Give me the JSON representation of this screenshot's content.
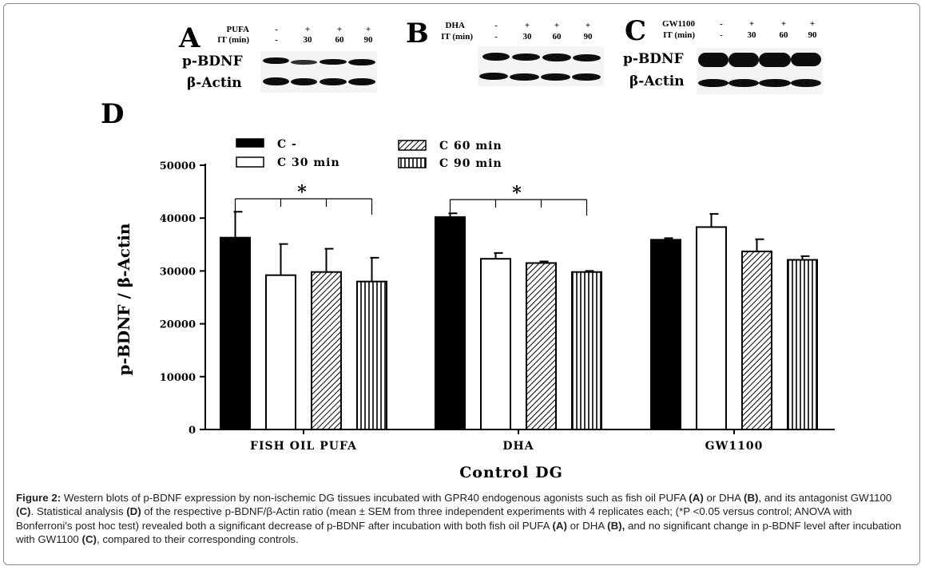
{
  "panels": [
    {
      "letter": "A",
      "row1_label": "PUFA",
      "row1": [
        "-",
        "+",
        "+",
        "+"
      ],
      "row2_label": "IT (min)",
      "row2": [
        "-",
        "30",
        "60",
        "90"
      ],
      "blots": [
        "p-BDNF",
        "β-Actin"
      ]
    },
    {
      "letter": "B",
      "row1_label": "DHA",
      "row1": [
        "-",
        "+",
        "+",
        "+"
      ],
      "row2_label": "IT (min)",
      "row2": [
        "-",
        "30",
        "60",
        "90"
      ],
      "blots": []
    },
    {
      "letter": "C",
      "row1_label": "GW1100",
      "row1": [
        "-",
        "+",
        "+",
        "+"
      ],
      "row2_label": "IT (min)",
      "row2": [
        "-",
        "30",
        "60",
        "90"
      ],
      "blots": [
        "p-BDNF",
        "β-Actin"
      ]
    }
  ],
  "chart_panel_letter": "D",
  "chart_data": {
    "type": "bar",
    "categories": [
      "FISH OIL PUFA",
      "DHA",
      "GW1100"
    ],
    "series": [
      {
        "name": "C -",
        "pattern": "solid",
        "values": [
          36300,
          40200,
          35900
        ],
        "errors": [
          4900,
          700,
          300
        ]
      },
      {
        "name": "C 30 min",
        "pattern": "open",
        "values": [
          29200,
          32300,
          38300
        ],
        "errors": [
          5900,
          1100,
          2500
        ]
      },
      {
        "name": "C 60 min",
        "pattern": "diagonal",
        "values": [
          29800,
          31500,
          33700
        ],
        "errors": [
          4400,
          300,
          2300
        ]
      },
      {
        "name": "C 90 min",
        "pattern": "vertical",
        "values": [
          28000,
          29800,
          32100
        ],
        "errors": [
          4500,
          200,
          700
        ]
      }
    ],
    "title": "",
    "xlabel": "Control DG",
    "ylabel": "p-BDNF / β-Actin",
    "ylim": [
      0,
      50000
    ],
    "yticks": [
      "0",
      "10000",
      "20000",
      "30000",
      "40000",
      "50000"
    ],
    "legend": [
      "C -",
      "C 30 min",
      "C 60 min",
      "C 90 min"
    ],
    "significance": [
      {
        "category": "FISH OIL PUFA",
        "marker": "*"
      },
      {
        "category": "DHA",
        "marker": "*"
      }
    ]
  },
  "caption": {
    "figure_label": "Figure 2:",
    "t1": " Western blots of p-BDNF expression by non-ischemic DG tissues incubated with GPR40 endogenous agonists such as fish oil PUFA ",
    "b1": "(A)",
    "t2": " or DHA ",
    "b2": "(B)",
    "t3": ", and its antagonist GW1100 ",
    "b3": "(C)",
    "t4": ". Statistical analysis ",
    "b4": "(D)",
    "t5": " of the respective p-BDNF/β-Actin ratio (mean ± SEM from three independent experiments with 4 replicates each; (*P <0.05 versus control; ANOVA with Bonferroni's post hoc test) revealed both a significant decrease of p-BDNF after incubation with both fish oil PUFA ",
    "b5": "(A)",
    "t6": " or DHA ",
    "b6": "(B),",
    "t7": " and no significant change in p-BDNF level after incubation with GW1100 ",
    "b7": "(C)",
    "t8": ", compared to their corresponding controls."
  }
}
